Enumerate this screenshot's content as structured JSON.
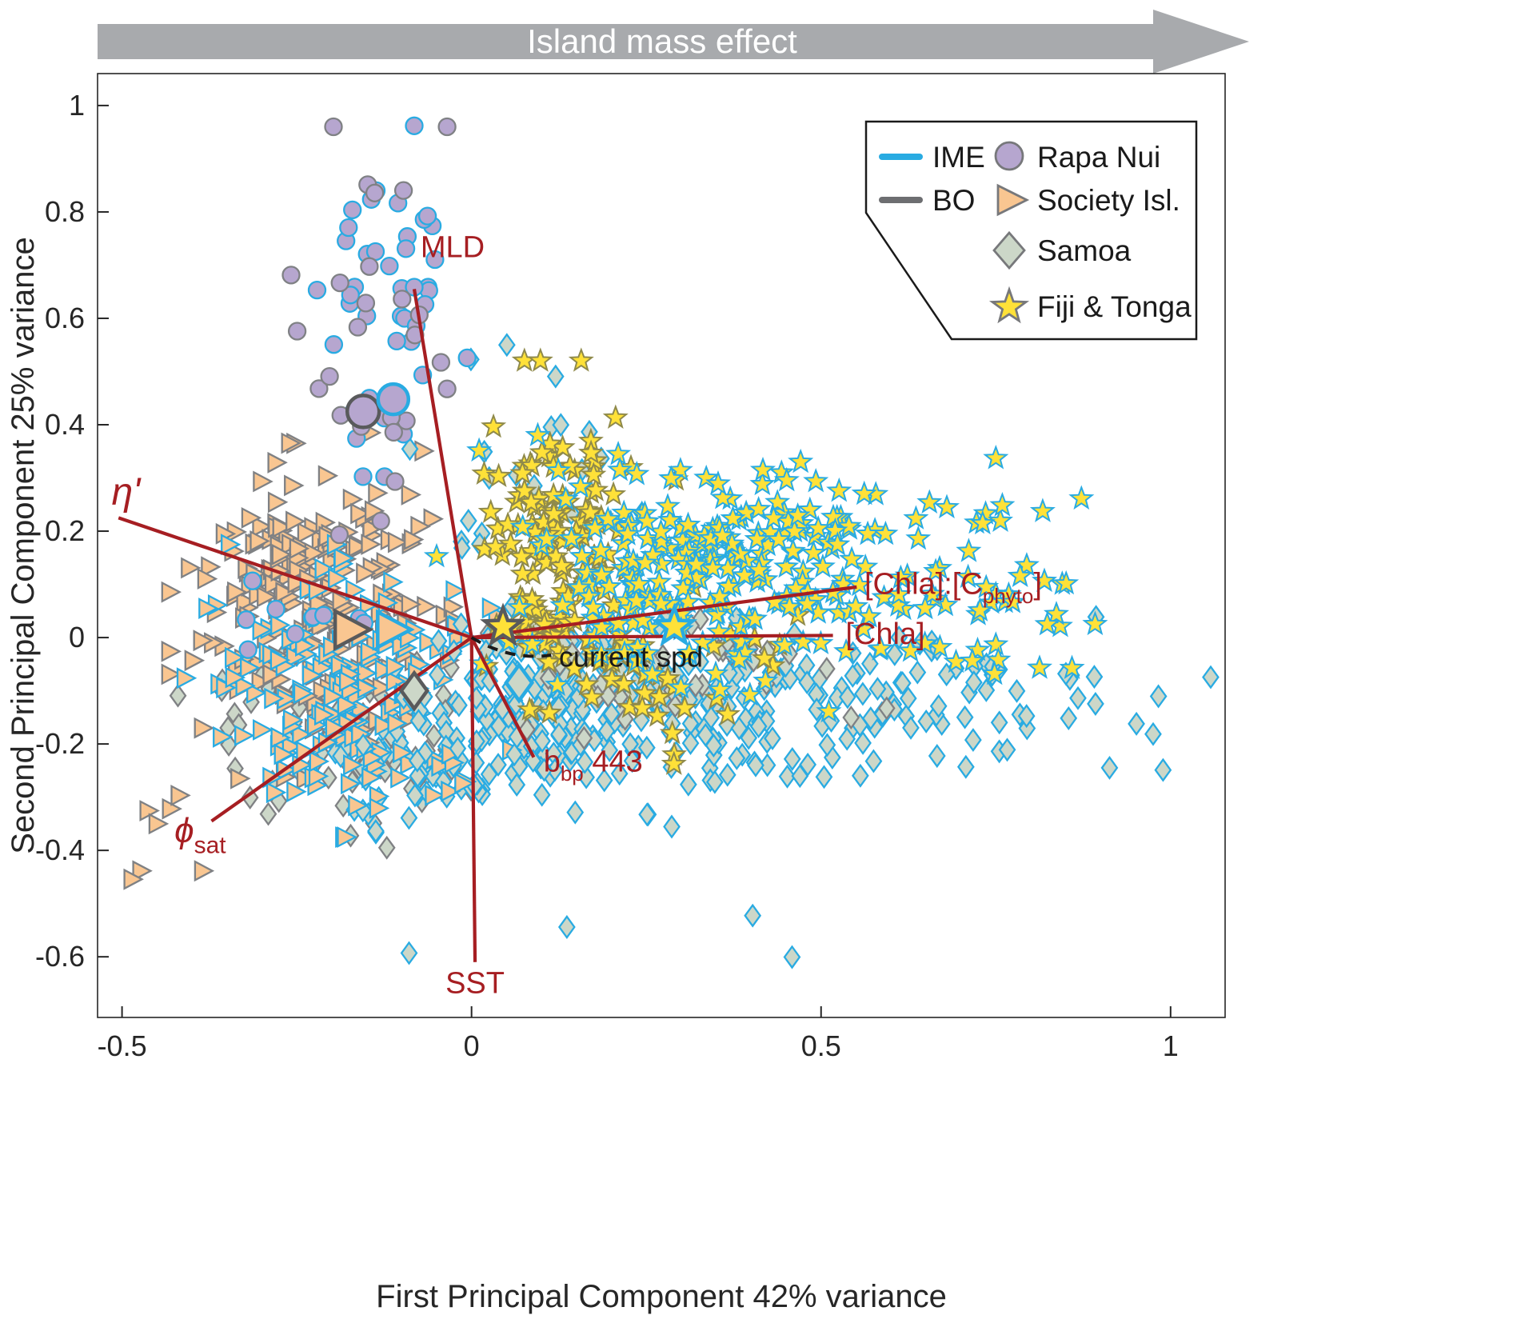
{
  "style": {
    "banner_fill": "#a8aaad",
    "banner_text_color": "#ffffff",
    "axis_color": "#262626",
    "vector_color": "#a61e22",
    "ime_blue": "#29abe2",
    "bo_gray": "#6d6e71",
    "background": "#ffffff"
  },
  "chart_data": {
    "type": "scatter",
    "title": "Island mass effect",
    "xlabel": "First Principal Component 42% variance",
    "ylabel": "Second Principal Component 25% variance",
    "xlim": [
      -0.535,
      1.078
    ],
    "ylim": [
      -0.714,
      1.06
    ],
    "xticks": [
      -0.5,
      0,
      0.5,
      1
    ],
    "yticks": [
      -0.6,
      -0.4,
      -0.2,
      0,
      0.2,
      0.4,
      0.6,
      0.8,
      1
    ],
    "grid": false,
    "legend": {
      "position": "top-right",
      "line_items": [
        {
          "label": "IME",
          "color": "#29abe2"
        },
        {
          "label": "BO",
          "color": "#6d6e71"
        }
      ],
      "marker_items": [
        {
          "label": "Rapa Nui",
          "shape": "circle"
        },
        {
          "label": "Society Isl.",
          "shape": "triangle"
        },
        {
          "label": "Samoa",
          "shape": "diamond"
        },
        {
          "label": "Fiji & Tonga",
          "shape": "star"
        }
      ]
    },
    "groups": {
      "rapa_nui": {
        "label": "Rapa Nui",
        "fill": "#b6a6cf",
        "shape": "circle"
      },
      "society": {
        "label": "Society Isl.",
        "fill": "#f9c691",
        "shape": "triangle"
      },
      "samoa": {
        "label": "Samoa",
        "fill": "#ccd7c8",
        "shape": "diamond"
      },
      "fiji_tonga": {
        "label": "Fiji & Tonga",
        "fill": "#ffe138",
        "shape": "star"
      }
    },
    "vectors": [
      {
        "name": "MLD",
        "x": -0.082,
        "y": 0.655,
        "color": "#a61e22",
        "dash": false,
        "label": {
          "x": -0.073,
          "y": 0.715,
          "anchor": "start",
          "fs": 38,
          "parts": [
            {
              "t": "MLD"
            }
          ]
        }
      },
      {
        "name": "eta-prime",
        "x": -0.505,
        "y": 0.225,
        "color": "#a61e22",
        "dash": false,
        "label": {
          "x": -0.515,
          "y": 0.25,
          "anchor": "start",
          "fs": 48,
          "italic": true,
          "parts": [
            {
              "t": "η'"
            }
          ]
        }
      },
      {
        "name": "phi-sat",
        "x": -0.372,
        "y": -0.345,
        "color": "#a61e22",
        "dash": false,
        "label": {
          "x": -0.425,
          "y": -0.385,
          "anchor": "start",
          "fs": 44,
          "parts": [
            {
              "t": "ϕ",
              "italic": true
            },
            {
              "t": "sat",
              "sub": true
            }
          ]
        }
      },
      {
        "name": "SST",
        "x": 0.005,
        "y": -0.61,
        "color": "#a61e22",
        "dash": false,
        "label": {
          "x": 0.005,
          "y": -0.668,
          "anchor": "middle",
          "fs": 38,
          "parts": [
            {
              "t": "SST"
            }
          ]
        }
      },
      {
        "name": "bbp-443",
        "x": 0.089,
        "y": -0.225,
        "color": "#a61e22",
        "dash": false,
        "label": {
          "x": 0.103,
          "y": -0.252,
          "anchor": "start",
          "fs": 38,
          "parts": [
            {
              "t": "b"
            },
            {
              "t": "bp",
              "sub": true
            },
            {
              "t": " 443"
            }
          ]
        }
      },
      {
        "name": "chla",
        "x": 0.517,
        "y": 0.004,
        "color": "#a61e22",
        "dash": false,
        "label": {
          "x": 0.535,
          "y": -0.012,
          "anchor": "start",
          "fs": 38,
          "parts": [
            {
              "t": "[Chla]"
            }
          ]
        }
      },
      {
        "name": "chla-cphyto",
        "x": 0.551,
        "y": 0.095,
        "color": "#a61e22",
        "dash": false,
        "label": {
          "x": 0.562,
          "y": 0.082,
          "anchor": "start",
          "fs": 38,
          "parts": [
            {
              "t": "[Chla]:[C"
            },
            {
              "t": "phyto",
              "sub": true
            },
            {
              "t": "]"
            }
          ]
        }
      },
      {
        "name": "current-spd",
        "x": 0.114,
        "y": -0.033,
        "color": "#1a1a1a",
        "dash": true,
        "label": {
          "x": 0.125,
          "y": -0.055,
          "anchor": "start",
          "fs": 36,
          "parts": [
            {
              "t": "current spd"
            }
          ]
        }
      }
    ],
    "clusters": [
      {
        "name": "samoa-bo-left",
        "group": "Samoa",
        "cohort": "BO",
        "shape": "diamond",
        "fill": "#ccd7c8",
        "edge": "#7f8184",
        "n": 80,
        "cx": -0.17,
        "cy": -0.17,
        "sx": 0.1,
        "sy": 0.09,
        "s": 21
      },
      {
        "name": "samoa-ime-left",
        "group": "Samoa",
        "cohort": "IME",
        "shape": "diamond",
        "fill": "#ccd7c8",
        "edge": "#29abe2",
        "n": 70,
        "cx": -0.05,
        "cy": -0.22,
        "sx": 0.1,
        "sy": 0.08,
        "s": 21
      },
      {
        "name": "society-bo",
        "group": "Society Isl.",
        "cohort": "BO",
        "shape": "triangle",
        "fill": "#f9c691",
        "edge": "#7f8184",
        "n": 230,
        "cx": -0.22,
        "cy": 0.06,
        "sx": 0.085,
        "sy": 0.13,
        "s": 21
      },
      {
        "name": "society-ime",
        "group": "Society Isl.",
        "cohort": "IME",
        "shape": "triangle",
        "fill": "#f9c691",
        "edge": "#29abe2",
        "n": 165,
        "cx": -0.19,
        "cy": -0.1,
        "sx": 0.1,
        "sy": 0.11,
        "s": 21
      },
      {
        "name": "society-outliers",
        "group": "Society Isl.",
        "cohort": "BO",
        "shape": "triangle",
        "fill": "#f9c691",
        "edge": "#7f8184",
        "n": 7,
        "cx": -0.44,
        "cy": -0.35,
        "sx": 0.045,
        "sy": 0.07,
        "s": 21
      },
      {
        "name": "samoa-ime-mid",
        "group": "Samoa",
        "cohort": "IME",
        "shape": "diamond",
        "fill": "#ccd7c8",
        "edge": "#29abe2",
        "n": 230,
        "cx": 0.17,
        "cy": -0.12,
        "sx": 0.13,
        "sy": 0.085,
        "s": 21
      },
      {
        "name": "samoa-upper",
        "group": "Samoa",
        "cohort": "IME",
        "shape": "diamond",
        "fill": "#ccd7c8",
        "edge": "#29abe2",
        "n": 25,
        "cx": 0.1,
        "cy": 0.25,
        "sx": 0.08,
        "sy": 0.12,
        "s": 21
      },
      {
        "name": "samoa-ime-right",
        "group": "Samoa",
        "cohort": "IME",
        "shape": "diamond",
        "fill": "#ccd7c8",
        "edge": "#29abe2",
        "n": 120,
        "cx": 0.55,
        "cy": -0.13,
        "sx": 0.17,
        "sy": 0.07,
        "s": 21
      },
      {
        "name": "samoa-far-right",
        "group": "Samoa",
        "cohort": "IME",
        "shape": "diamond",
        "fill": "#ccd7c8",
        "edge": "#29abe2",
        "n": 8,
        "cx": 0.93,
        "cy": -0.15,
        "sx": 0.07,
        "sy": 0.05,
        "s": 21
      },
      {
        "name": "samoa-bo-mid",
        "group": "Samoa",
        "cohort": "BO",
        "shape": "diamond",
        "fill": "#ccd7c8",
        "edge": "#7f8184",
        "n": 35,
        "cx": 0.3,
        "cy": -0.08,
        "sx": 0.12,
        "sy": 0.07,
        "s": 21
      },
      {
        "name": "samoa-low-outliers",
        "group": "Samoa",
        "cohort": "IME",
        "shape": "diamond",
        "fill": "#ccd7c8",
        "edge": "#29abe2",
        "n": 5,
        "cx": 0.25,
        "cy": -0.52,
        "sx": 0.15,
        "sy": 0.08,
        "s": 21
      },
      {
        "name": "fiji-bo-band",
        "group": "Fiji & Tonga",
        "cohort": "BO",
        "shape": "star",
        "fill": "#ffe138",
        "edge": "#8f8a4b",
        "n": 150,
        "cx": 0.13,
        "cy": 0.17,
        "sx": 0.065,
        "sy": 0.14,
        "s": 14
      },
      {
        "name": "fiji-bo-low",
        "group": "Fiji & Tonga",
        "cohort": "BO",
        "shape": "star",
        "fill": "#ffe138",
        "edge": "#8f8a4b",
        "n": 35,
        "cx": 0.28,
        "cy": -0.08,
        "sx": 0.09,
        "sy": 0.07,
        "s": 14
      },
      {
        "name": "fiji-ime",
        "group": "Fiji & Tonga",
        "cohort": "IME",
        "shape": "star",
        "fill": "#ffe138",
        "edge": "#29abe2",
        "n": 260,
        "cx": 0.35,
        "cy": 0.13,
        "sx": 0.16,
        "sy": 0.1,
        "s": 14
      },
      {
        "name": "fiji-ime-right",
        "group": "Fiji & Tonga",
        "cohort": "IME",
        "shape": "star",
        "fill": "#ffe138",
        "edge": "#29abe2",
        "n": 40,
        "cx": 0.72,
        "cy": 0.08,
        "sx": 0.13,
        "sy": 0.09,
        "s": 14
      },
      {
        "name": "rapa-ime",
        "group": "Rapa Nui",
        "cohort": "IME",
        "shape": "circle",
        "fill": "#b6a6cf",
        "edge": "#29abe2",
        "n": 42,
        "cx": -0.12,
        "cy": 0.6,
        "sx": 0.055,
        "sy": 0.16,
        "s": 21
      },
      {
        "name": "rapa-bo",
        "group": "Rapa Nui",
        "cohort": "BO",
        "shape": "circle",
        "fill": "#b6a6cf",
        "edge": "#7f8184",
        "n": 26,
        "cx": -0.16,
        "cy": 0.56,
        "sx": 0.05,
        "sy": 0.16,
        "s": 21
      },
      {
        "name": "rapa-low",
        "group": "Rapa Nui",
        "cohort": "IME",
        "shape": "circle",
        "fill": "#b6a6cf",
        "edge": "#29abe2",
        "n": 10,
        "cx": -0.24,
        "cy": 0.05,
        "sx": 0.06,
        "sy": 0.05,
        "s": 21
      }
    ],
    "centroids": [
      {
        "name": "rapa-bo",
        "shape": "circle",
        "fill": "#b6a6cf",
        "edge": "#595a5c",
        "x": -0.155,
        "y": 0.425,
        "s": 40
      },
      {
        "name": "rapa-ime",
        "shape": "circle",
        "fill": "#b6a6cf",
        "edge": "#29abe2",
        "x": -0.112,
        "y": 0.448,
        "s": 38
      },
      {
        "name": "society-bo",
        "shape": "triangle",
        "fill": "#f9c691",
        "edge": "#595a5c",
        "x": -0.175,
        "y": 0.015,
        "s": 42
      },
      {
        "name": "society-ime",
        "shape": "triangle",
        "fill": "#f9c691",
        "edge": "#29abe2",
        "x": -0.115,
        "y": 0.015,
        "s": 40
      },
      {
        "name": "samoa-bo",
        "shape": "diamond",
        "fill": "#ccd7c8",
        "edge": "#595a5c",
        "x": -0.082,
        "y": -0.1,
        "s": 36
      },
      {
        "name": "samoa-ime",
        "shape": "diamond",
        "fill": "#ccd7c8",
        "edge": "#29abe2",
        "x": 0.068,
        "y": -0.085,
        "s": 36
      },
      {
        "name": "fiji-bo",
        "shape": "star",
        "fill": "#ffe138",
        "edge": "#595a5c",
        "x": 0.045,
        "y": 0.02,
        "s": 24
      },
      {
        "name": "fiji-ime",
        "shape": "star",
        "fill": "#ffe138",
        "edge": "#29abe2",
        "x": 0.29,
        "y": 0.02,
        "s": 24
      }
    ]
  }
}
